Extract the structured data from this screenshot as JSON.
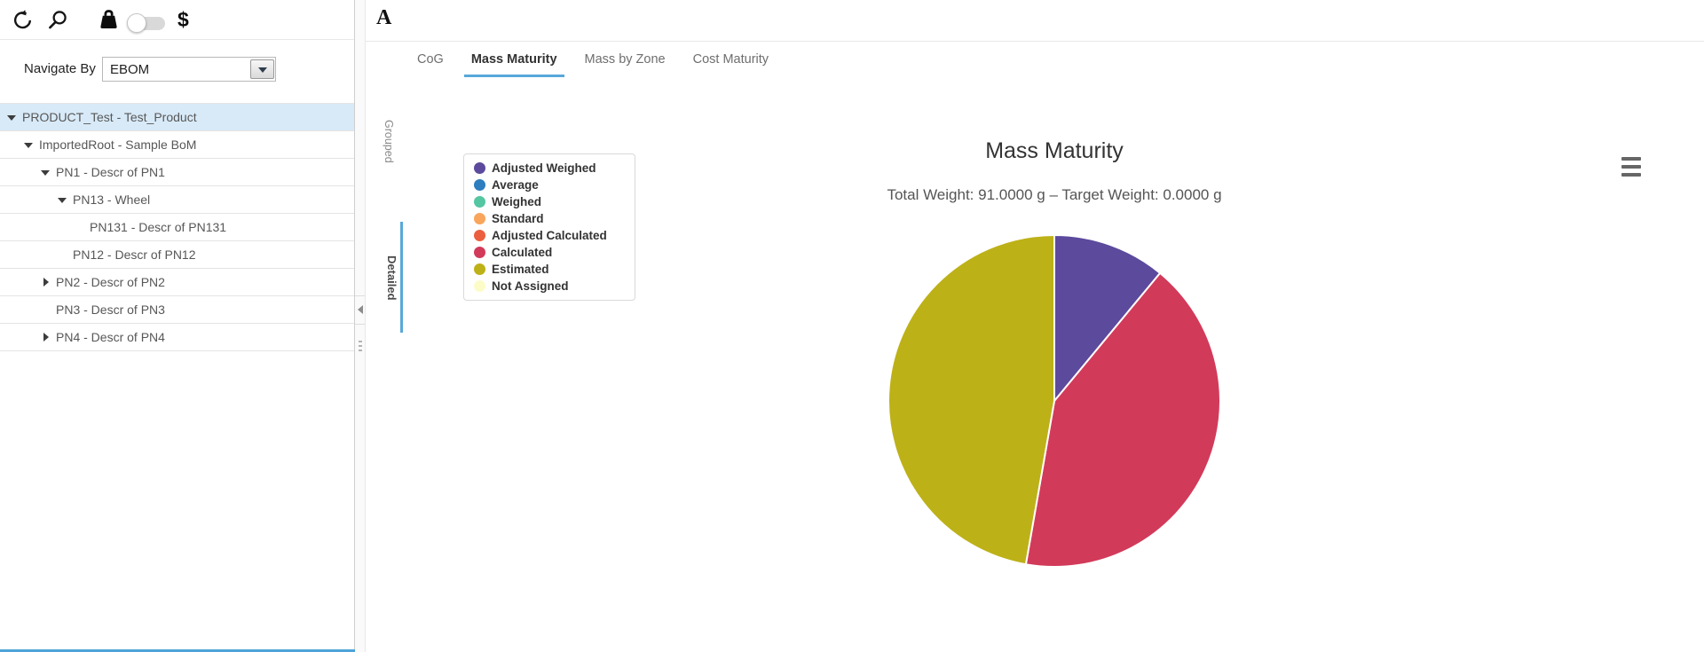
{
  "sidebar": {
    "toolbar": {
      "icons": [
        "refresh-icon",
        "search-icon",
        "weight-icon",
        "toggle-switch",
        "currency-icon"
      ],
      "currency_glyph": "$",
      "toggle_state": "off"
    },
    "navigate_by": {
      "label": "Navigate By",
      "value": "EBOM"
    },
    "tree": [
      {
        "label": "PRODUCT_Test - Test_Product",
        "level": 0,
        "state": "expanded",
        "selected": true
      },
      {
        "label": "ImportedRoot - Sample BoM",
        "level": 1,
        "state": "expanded",
        "selected": false
      },
      {
        "label": "PN1 - Descr of PN1",
        "level": 2,
        "state": "expanded",
        "selected": false
      },
      {
        "label": "PN13 - Wheel",
        "level": 3,
        "state": "expanded",
        "selected": false
      },
      {
        "label": "PN131 - Descr of PN131",
        "level": 4,
        "state": "leaf",
        "selected": false
      },
      {
        "label": "PN12 - Descr of PN12",
        "level": 3,
        "state": "leaf",
        "selected": false
      },
      {
        "label": "PN2 - Descr of PN2",
        "level": 2,
        "state": "collapsed",
        "selected": false
      },
      {
        "label": "PN3 - Descr of PN3",
        "level": 2,
        "state": "leaf",
        "selected": false
      },
      {
        "label": "PN4 - Descr of PN4",
        "level": 2,
        "state": "collapsed",
        "selected": false
      }
    ]
  },
  "panel": {
    "logo": "A",
    "tabs": [
      {
        "label": "CoG",
        "active": false
      },
      {
        "label": "Mass Maturity",
        "active": true
      },
      {
        "label": "Mass by Zone",
        "active": false
      },
      {
        "label": "Cost Maturity",
        "active": false
      }
    ],
    "side_tabs": [
      {
        "label": "Grouped",
        "active": false
      },
      {
        "label": "Detailed",
        "active": true
      }
    ]
  },
  "chart_data": {
    "type": "pie",
    "title": "Mass Maturity",
    "subtitle": "Total Weight: 91.0000 g – Target Weight: 0.0000 g",
    "total_weight_g": 91.0,
    "target_weight_g": 0.0,
    "unit": "g",
    "legend_position": "left",
    "categories": [
      "Adjusted Weighed",
      "Average",
      "Weighed",
      "Standard",
      "Adjusted Calculated",
      "Calculated",
      "Estimated",
      "Not Assigned"
    ],
    "values": [
      10,
      0,
      0,
      0,
      0,
      38,
      43,
      0
    ],
    "colors": [
      "#5c4a9d",
      "#2d7dbf",
      "#55c6a2",
      "#f9a55b",
      "#eb5f3f",
      "#d23a5a",
      "#bdb118",
      "#fcfcc9"
    ],
    "start_angle_deg": 0,
    "direction": "clockwise"
  },
  "colors": {
    "accent_blue": "#57a8d9",
    "selection_bg": "#d8eaf8",
    "bottom_accent": "#4ea3d9"
  }
}
